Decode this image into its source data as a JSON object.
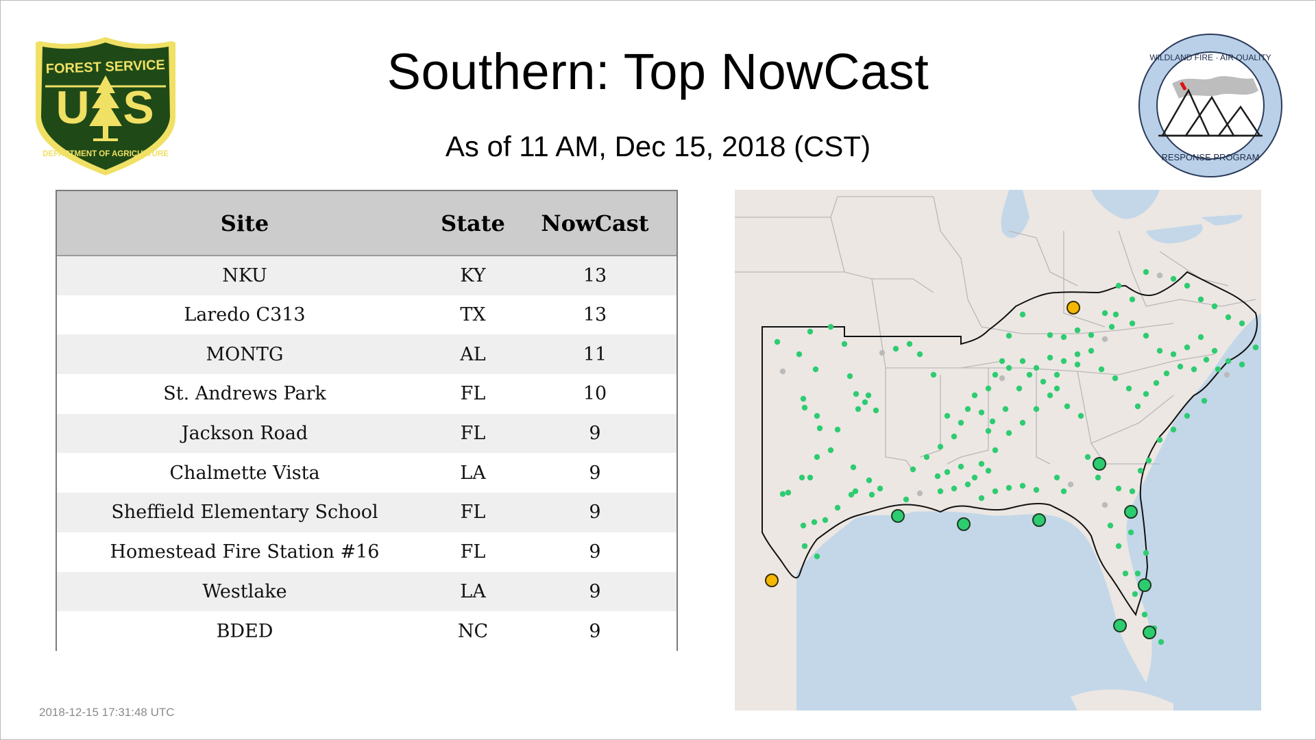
{
  "header": {
    "title": "Southern: Top NowCast",
    "subtitle": "As of 11 AM, Dec 15, 2018 (CST)"
  },
  "logos": {
    "left": {
      "icon": "forest-service-shield-icon",
      "top_text": "FOREST SERVICE",
      "left_letter": "U",
      "right_letter": "S",
      "bottom_text": "DEPARTMENT OF AGRICULTURE",
      "colors": {
        "green": "#1f4a17",
        "gold": "#f0e064"
      }
    },
    "right": {
      "icon": "wildland-fire-air-quality-icon",
      "top_text": "WILDLAND FIRE · AIR QUALITY",
      "bottom_text": "RESPONSE PROGRAM",
      "colors": {
        "ring": "#b9d0e8",
        "outline": "#2a3a5a"
      }
    }
  },
  "table": {
    "headers": [
      "Site",
      "State",
      "NowCast"
    ],
    "rows": [
      {
        "site": "NKU",
        "state": "KY",
        "nowcast": "13"
      },
      {
        "site": "Laredo C313",
        "state": "TX",
        "nowcast": "13"
      },
      {
        "site": "MONTG",
        "state": "AL",
        "nowcast": "11"
      },
      {
        "site": "St. Andrews Park",
        "state": "FL",
        "nowcast": "10"
      },
      {
        "site": "Jackson Road",
        "state": "FL",
        "nowcast": "9"
      },
      {
        "site": "Chalmette Vista",
        "state": "LA",
        "nowcast": "9"
      },
      {
        "site": "Sheffield Elementary School",
        "state": "FL",
        "nowcast": "9"
      },
      {
        "site": "Homestead Fire Station #16",
        "state": "FL",
        "nowcast": "9"
      },
      {
        "site": "Westlake",
        "state": "LA",
        "nowcast": "9"
      },
      {
        "site": "BDED",
        "state": "NC",
        "nowcast": "9"
      }
    ]
  },
  "map": {
    "icon": "southern-region-map",
    "colors": {
      "land": "#ece7e3",
      "water": "#c3d7e8",
      "good": "#2ecc71",
      "moderate": "#f5b800",
      "no_data": "#bbbbbb",
      "region_border": "#111111"
    }
  },
  "footer": {
    "timestamp": "2018-12-15 17:31:48 UTC"
  }
}
